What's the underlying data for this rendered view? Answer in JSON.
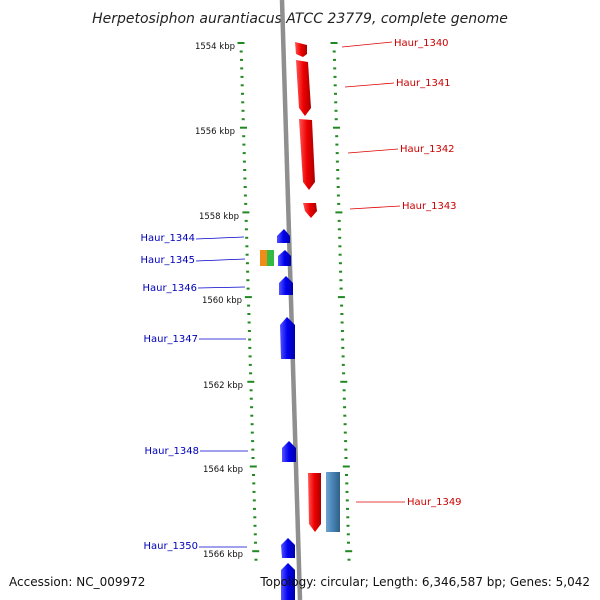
{
  "title": "Herpetosiphon aurantiacus ATCC 23779, complete genome",
  "footer": {
    "accession": "Accession: NC_009972",
    "summary": "Topology: circular; Length: 6,346,587 bp; Genes: 5,042"
  },
  "colors": {
    "forward_gene": "#ee0000",
    "reverse_gene": "#0000ee",
    "backbone": "#888888",
    "tick": "#228822",
    "steelblue_feature": "#4682b4",
    "orange_feature": "#f08c1a",
    "green_feature": "#33bb44"
  },
  "scale_labels": [
    "1554 kbp",
    "1556 kbp",
    "1558 kbp",
    "1560 kbp",
    "1562 kbp",
    "1564 kbp",
    "1566 kbp"
  ],
  "genes": {
    "forward": [
      {
        "name": "Haur_1340"
      },
      {
        "name": "Haur_1341"
      },
      {
        "name": "Haur_1342"
      },
      {
        "name": "Haur_1343"
      },
      {
        "name": "Haur_1349"
      }
    ],
    "reverse": [
      {
        "name": "Haur_1344"
      },
      {
        "name": "Haur_1345"
      },
      {
        "name": "Haur_1346"
      },
      {
        "name": "Haur_1347"
      },
      {
        "name": "Haur_1348"
      },
      {
        "name": "Haur_1350"
      }
    ]
  }
}
